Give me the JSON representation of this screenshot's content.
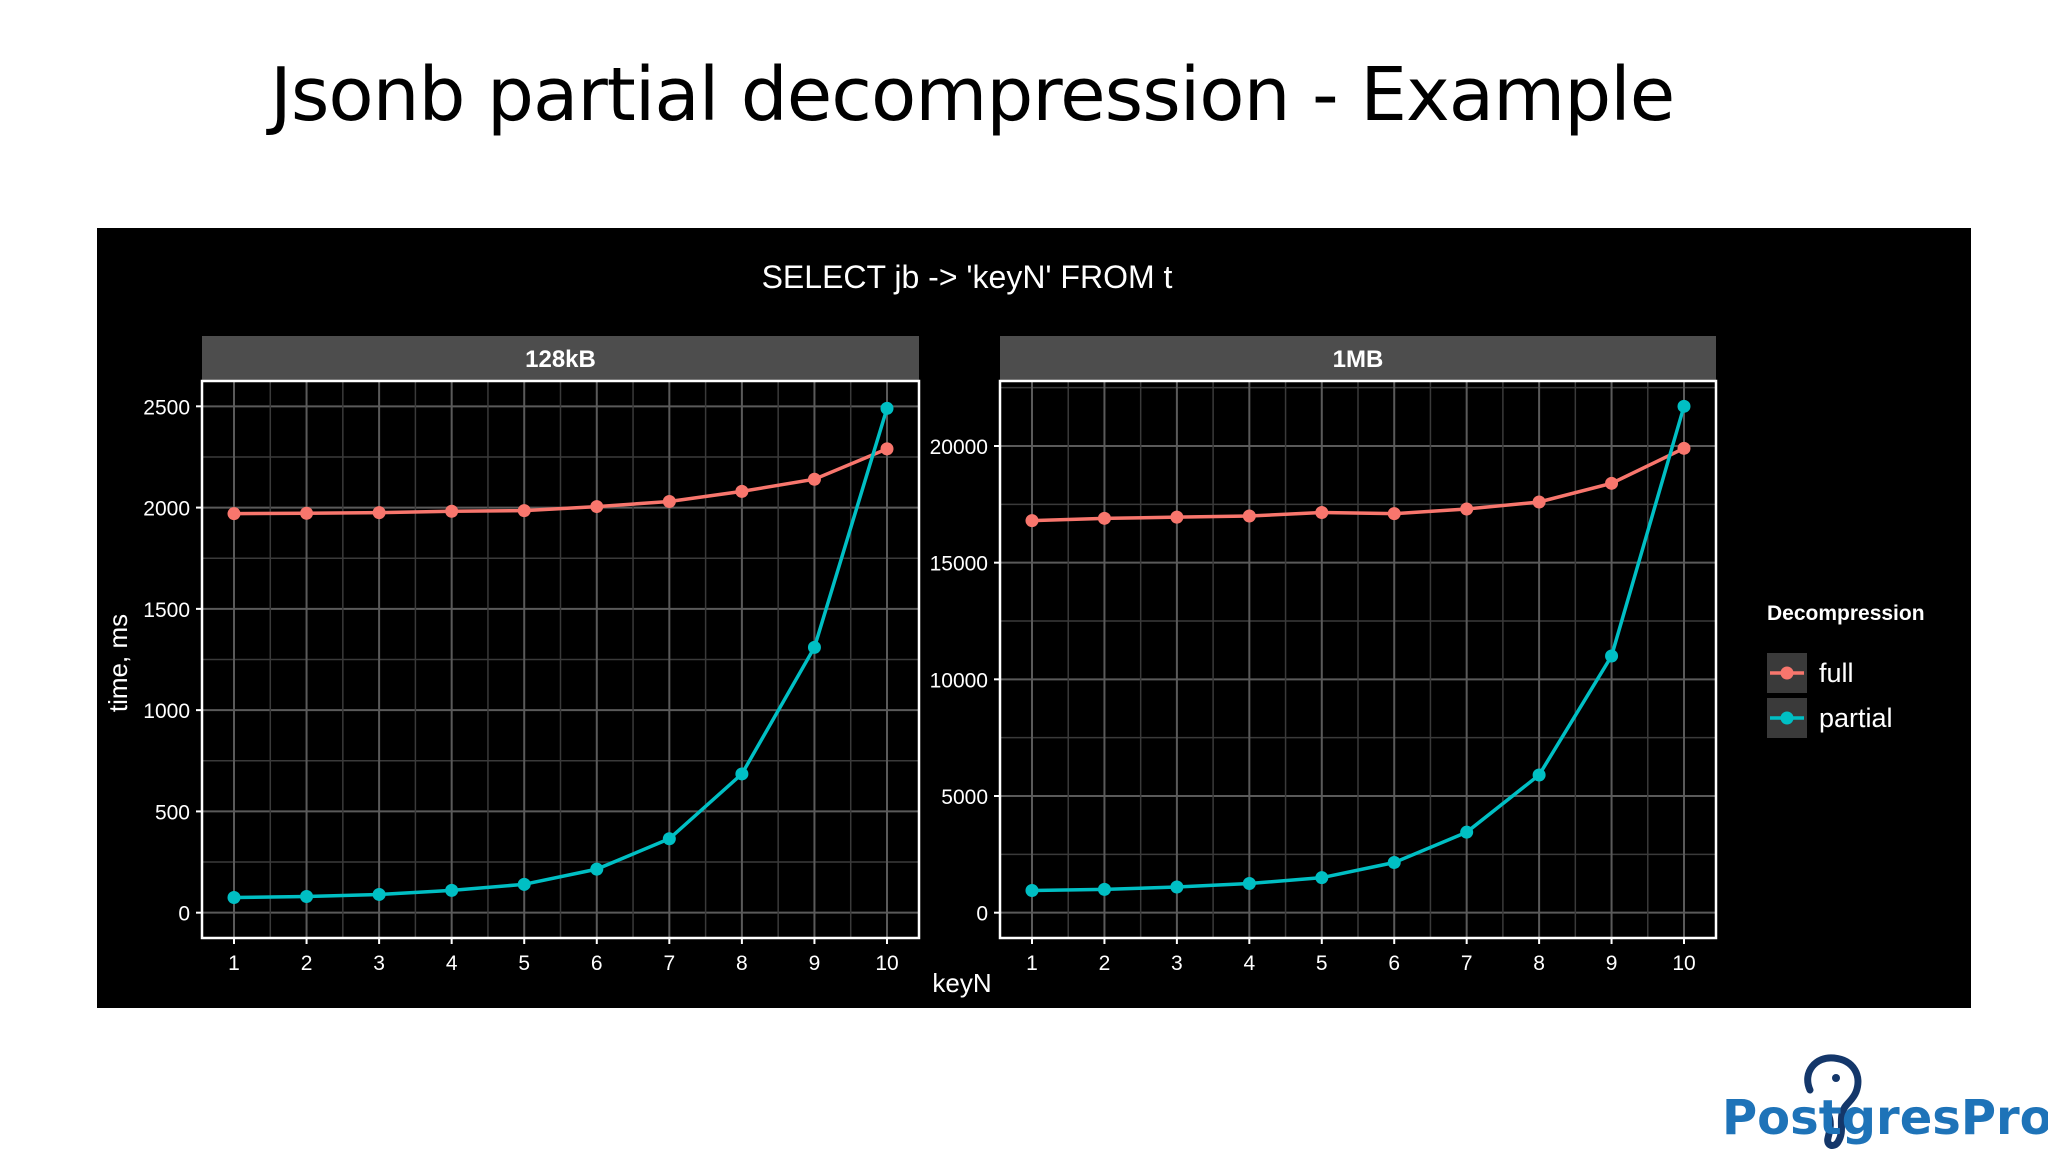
{
  "slide": {
    "title": "Jsonb partial decompression - Example"
  },
  "logo": {
    "text": "PostgresPro",
    "icon": "elephant-icon",
    "color": "#1e73b8"
  },
  "chart_data": {
    "type": "line",
    "title": "SELECT jb -> 'keyN' FROM t",
    "xlabel": "keyN",
    "ylabel": "time, ms",
    "legend": {
      "title": "Decompression",
      "placement": "right",
      "entries": [
        "full",
        "partial"
      ]
    },
    "colors": {
      "full": "#f8766d",
      "partial": "#00bfc4"
    },
    "background": "#000000",
    "grid": true,
    "x": [
      1,
      2,
      3,
      4,
      5,
      6,
      7,
      8,
      9,
      10
    ],
    "panels": [
      {
        "name": "128kB",
        "ylim": [
          0,
          2500
        ],
        "yticks": [
          0,
          500,
          1000,
          1500,
          2000,
          2500
        ],
        "series": [
          {
            "name": "full",
            "values": [
              1970,
              1972,
              1975,
              1982,
              1985,
              2005,
              2030,
              2080,
              2140,
              2290
            ]
          },
          {
            "name": "partial",
            "values": [
              75,
              80,
              90,
              110,
              140,
              215,
              365,
              685,
              1310,
              2490
            ]
          }
        ]
      },
      {
        "name": "1MB",
        "ylim": [
          0,
          20000
        ],
        "yticks": [
          0,
          5000,
          10000,
          15000,
          20000
        ],
        "series": [
          {
            "name": "full",
            "values": [
              16800,
              16900,
              16950,
              17000,
              17150,
              17100,
              17300,
              17600,
              18400,
              19900
            ]
          },
          {
            "name": "partial",
            "values": [
              950,
              1000,
              1100,
              1250,
              1500,
              2150,
              3450,
              5900,
              11000,
              21700
            ]
          }
        ]
      }
    ]
  }
}
